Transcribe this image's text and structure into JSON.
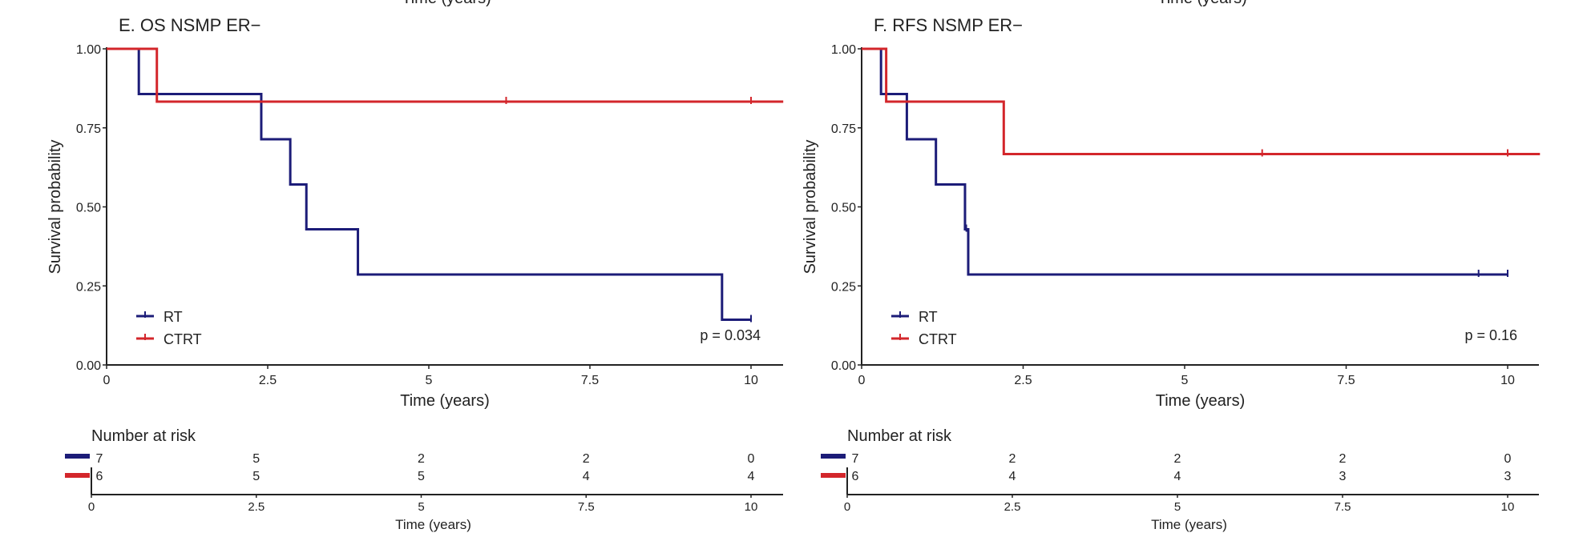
{
  "top_clipped_labels": [
    "Time (years)",
    "Time (years)"
  ],
  "colors": {
    "RT": "#1c1c78",
    "CTRT": "#d3262b",
    "axis": "#222222"
  },
  "chart_data": [
    {
      "type": "line",
      "subtype": "kaplan-meier step",
      "title": "E. OS NSMP ER−",
      "xlabel": "Time (years)",
      "ylabel": "Survival probability",
      "xlim": [
        0,
        10.5
      ],
      "ylim": [
        0,
        1
      ],
      "xticks": [
        "0",
        "2.5",
        "5",
        "7.5",
        "10"
      ],
      "yticks": [
        "0.00",
        "0.25",
        "0.50",
        "0.75",
        "1.00"
      ],
      "grid": false,
      "legend_placement": "bottom-left",
      "pvalue": "p = 0.034",
      "series": [
        {
          "name": "RT",
          "steps": [
            [
              0,
              1
            ],
            [
              0.5,
              0.857
            ],
            [
              2.4,
              0.714
            ],
            [
              2.85,
              0.571
            ],
            [
              3.1,
              0.429
            ],
            [
              3.9,
              0.286
            ],
            [
              9.55,
              0.143
            ]
          ],
          "end": 10,
          "censors": [
            10
          ]
        },
        {
          "name": "CTRT",
          "steps": [
            [
              0,
              1
            ],
            [
              0.78,
              0.833
            ]
          ],
          "end": 10.5,
          "censors": [
            6.2,
            10
          ]
        }
      ],
      "risk_table": {
        "title": "Number at risk",
        "xlabel": "Time (years)",
        "times": [
          "0",
          "2.5",
          "5",
          "7.5",
          "10"
        ],
        "rows": [
          {
            "name": "RT",
            "values": [
              "7",
              "5",
              "2",
              "2",
              "0"
            ]
          },
          {
            "name": "CTRT",
            "values": [
              "6",
              "5",
              "5",
              "4",
              "4"
            ]
          }
        ]
      }
    },
    {
      "type": "line",
      "subtype": "kaplan-meier step",
      "title": "F. RFS NSMP ER−",
      "xlabel": "Time (years)",
      "ylabel": "Survival probability",
      "xlim": [
        0,
        10.5
      ],
      "ylim": [
        0,
        1
      ],
      "xticks": [
        "0",
        "2.5",
        "5",
        "7.5",
        "10"
      ],
      "yticks": [
        "0.00",
        "0.25",
        "0.50",
        "0.75",
        "1.00"
      ],
      "grid": false,
      "legend_placement": "bottom-left",
      "pvalue": "p = 0.16",
      "series": [
        {
          "name": "RT",
          "steps": [
            [
              0,
              1
            ],
            [
              0.3,
              0.857
            ],
            [
              0.7,
              0.714
            ],
            [
              1.15,
              0.571
            ],
            [
              1.6,
              0.429
            ],
            [
              1.65,
              0.286
            ]
          ],
          "end": 10,
          "censors": [
            1.62,
            9.55,
            10
          ]
        },
        {
          "name": "CTRT",
          "steps": [
            [
              0,
              1
            ],
            [
              0.38,
              0.833
            ],
            [
              2.2,
              0.667
            ]
          ],
          "end": 10.5,
          "censors": [
            6.2,
            10
          ]
        }
      ],
      "risk_table": {
        "title": "Number at risk",
        "xlabel": "Time (years)",
        "times": [
          "0",
          "2.5",
          "5",
          "7.5",
          "10"
        ],
        "rows": [
          {
            "name": "RT",
            "values": [
              "7",
              "2",
              "2",
              "2",
              "0"
            ]
          },
          {
            "name": "CTRT",
            "values": [
              "6",
              "4",
              "4",
              "3",
              "3"
            ]
          }
        ]
      }
    }
  ]
}
